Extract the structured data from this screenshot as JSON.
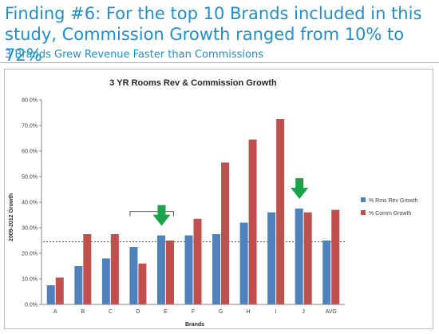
{
  "slide": {
    "headline": "Finding #6: For the top 10 Brands included in this study, Commission Growth ranged from 10% to 72%",
    "subheadline": "3 Brands Grew Revenue Faster than Commissions"
  },
  "colors": {
    "headline": "#1e8fcf",
    "rev_series": "#4f81bd",
    "comm_series": "#c0504d",
    "arrow": "#1aa34a"
  },
  "chart_data": {
    "type": "bar",
    "title": "3 YR Rooms Rev & Commission Growth",
    "xlabel": "Brands",
    "ylabel": "2009-2012 Growth",
    "categories": [
      "A",
      "B",
      "C",
      "D",
      "E",
      "F",
      "G",
      "H",
      "I",
      "J",
      "AVG"
    ],
    "series": [
      {
        "name": "% Rms Rev Growth",
        "color": "#4f81bd",
        "values": [
          7.5,
          15.0,
          18.0,
          22.5,
          27.0,
          27.0,
          27.5,
          32.0,
          36.0,
          37.5,
          25.0
        ]
      },
      {
        "name": "% Comm Growth",
        "color": "#c0504d",
        "values": [
          10.5,
          27.5,
          27.5,
          16.0,
          25.0,
          33.5,
          55.5,
          64.5,
          72.5,
          36.0,
          37.0
        ]
      }
    ],
    "ylim": [
      0,
      80
    ],
    "ytick_labels": [
      "0.0%",
      "10.0%",
      "20.0%",
      "30.0%",
      "40.0%",
      "50.0%",
      "60.0%",
      "70.0%",
      "80.0%"
    ],
    "reference_line": 24.5,
    "arrows_over": [
      "E",
      "J"
    ],
    "bracket_over": [
      "D",
      "E"
    ],
    "legend_position": "right",
    "grid": false
  }
}
